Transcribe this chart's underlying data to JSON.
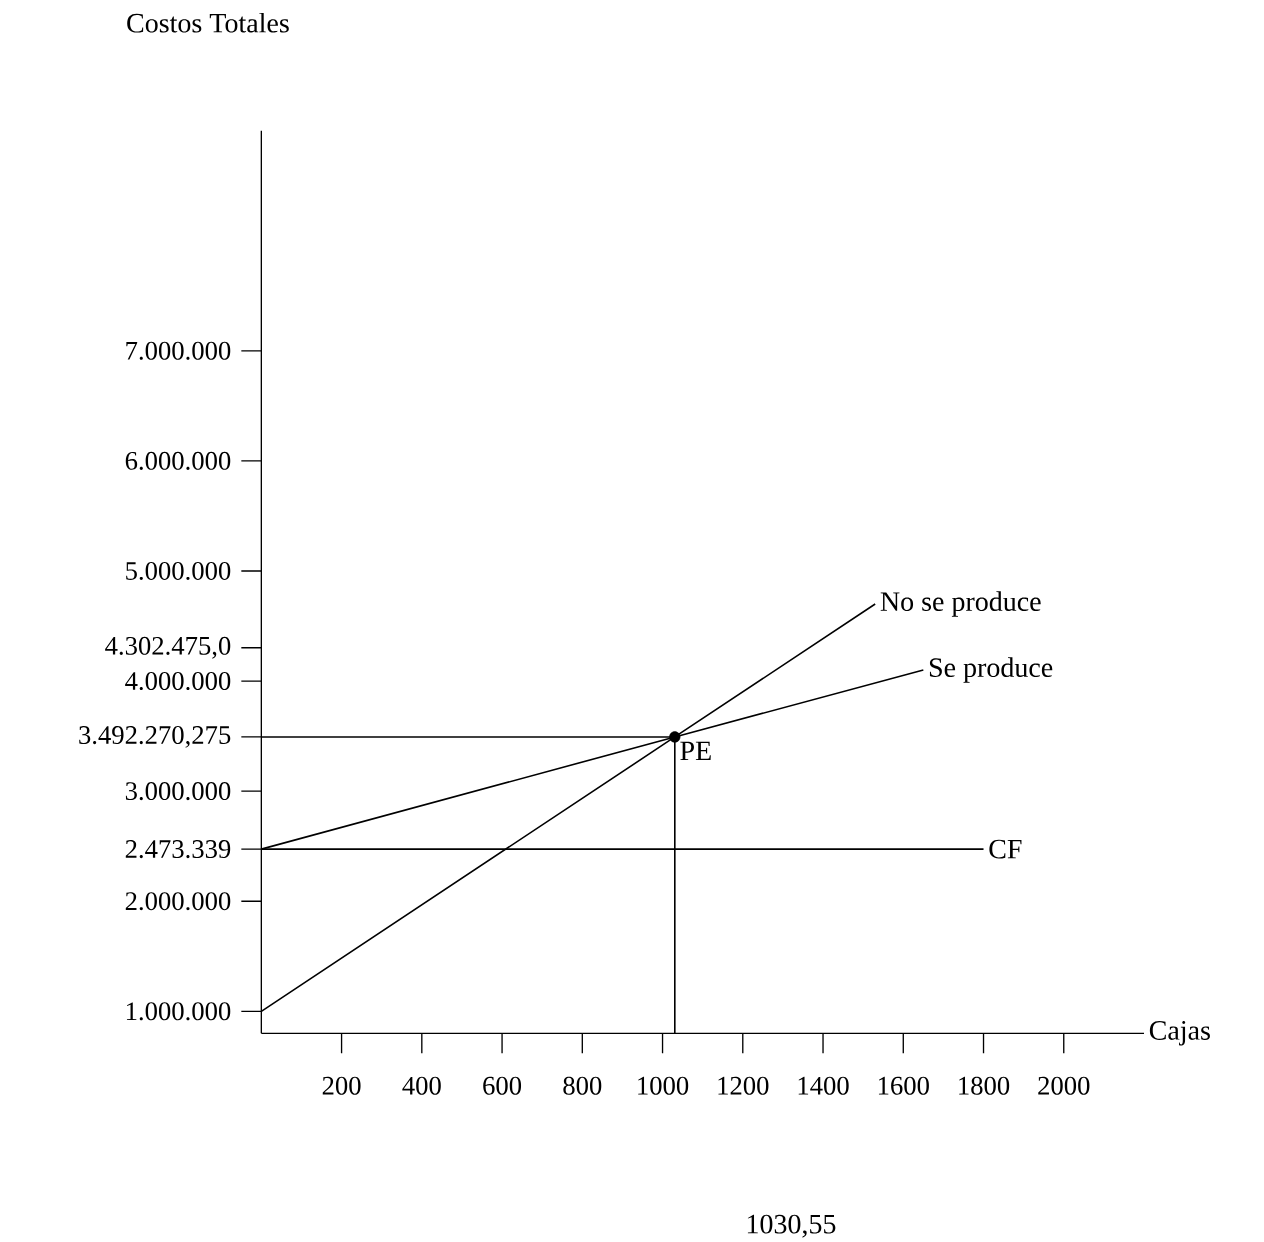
{
  "chart_data": {
    "type": "line",
    "ylabel": "Costos Totales",
    "xlabel": "Cajas",
    "xlim": [
      0,
      2200
    ],
    "ylim": [
      800000,
      9000000
    ],
    "xticks": [
      200,
      400,
      600,
      800,
      1000,
      1200,
      1400,
      1600,
      1800,
      2000
    ],
    "yticks": [
      {
        "value": 1000000,
        "label": "1.000.000"
      },
      {
        "value": 2000000,
        "label": "2.000.000"
      },
      {
        "value": 2473339,
        "label": "2.473.339"
      },
      {
        "value": 3000000,
        "label": "3.000.000"
      },
      {
        "value": 3492270.275,
        "label": "3.492.270,275"
      },
      {
        "value": 4000000,
        "label": "4.000.000"
      },
      {
        "value": 4302475,
        "label": "4.302.475,0"
      },
      {
        "value": 5000000,
        "label": "5.000.000"
      },
      {
        "value": 6000000,
        "label": "6.000.000"
      },
      {
        "value": 7000000,
        "label": "7.000.000"
      }
    ],
    "series": [
      {
        "name": "No se produce",
        "color": "#000000",
        "x": [
          0,
          1030.55,
          1530
        ],
        "values": [
          1000000,
          3492270.275,
          4700000
        ]
      },
      {
        "name": "Se produce",
        "color": "#000000",
        "x": [
          0,
          1030.55,
          1650
        ],
        "values": [
          2473339,
          3492270.275,
          4100000
        ]
      },
      {
        "name": "CF",
        "color": "#000000",
        "x": [
          0,
          1800
        ],
        "values": [
          2473339,
          2473339
        ]
      },
      {
        "color": "#000000",
        "x": [
          0,
          1030.55
        ],
        "values": [
          3492270.275,
          3492270.275
        ]
      },
      {
        "color": "#000000",
        "x": [
          1030.55,
          1030.55
        ],
        "values": [
          800000,
          3492270.275
        ]
      },
      {
        "type": "scatter",
        "color": "#000000",
        "x": [
          1030.55
        ],
        "values": [
          3492270.275
        ]
      }
    ],
    "annotations": [
      {
        "text": "PE",
        "x": 1030.55,
        "y": 3492270.275
      },
      "1030,55"
    ]
  }
}
